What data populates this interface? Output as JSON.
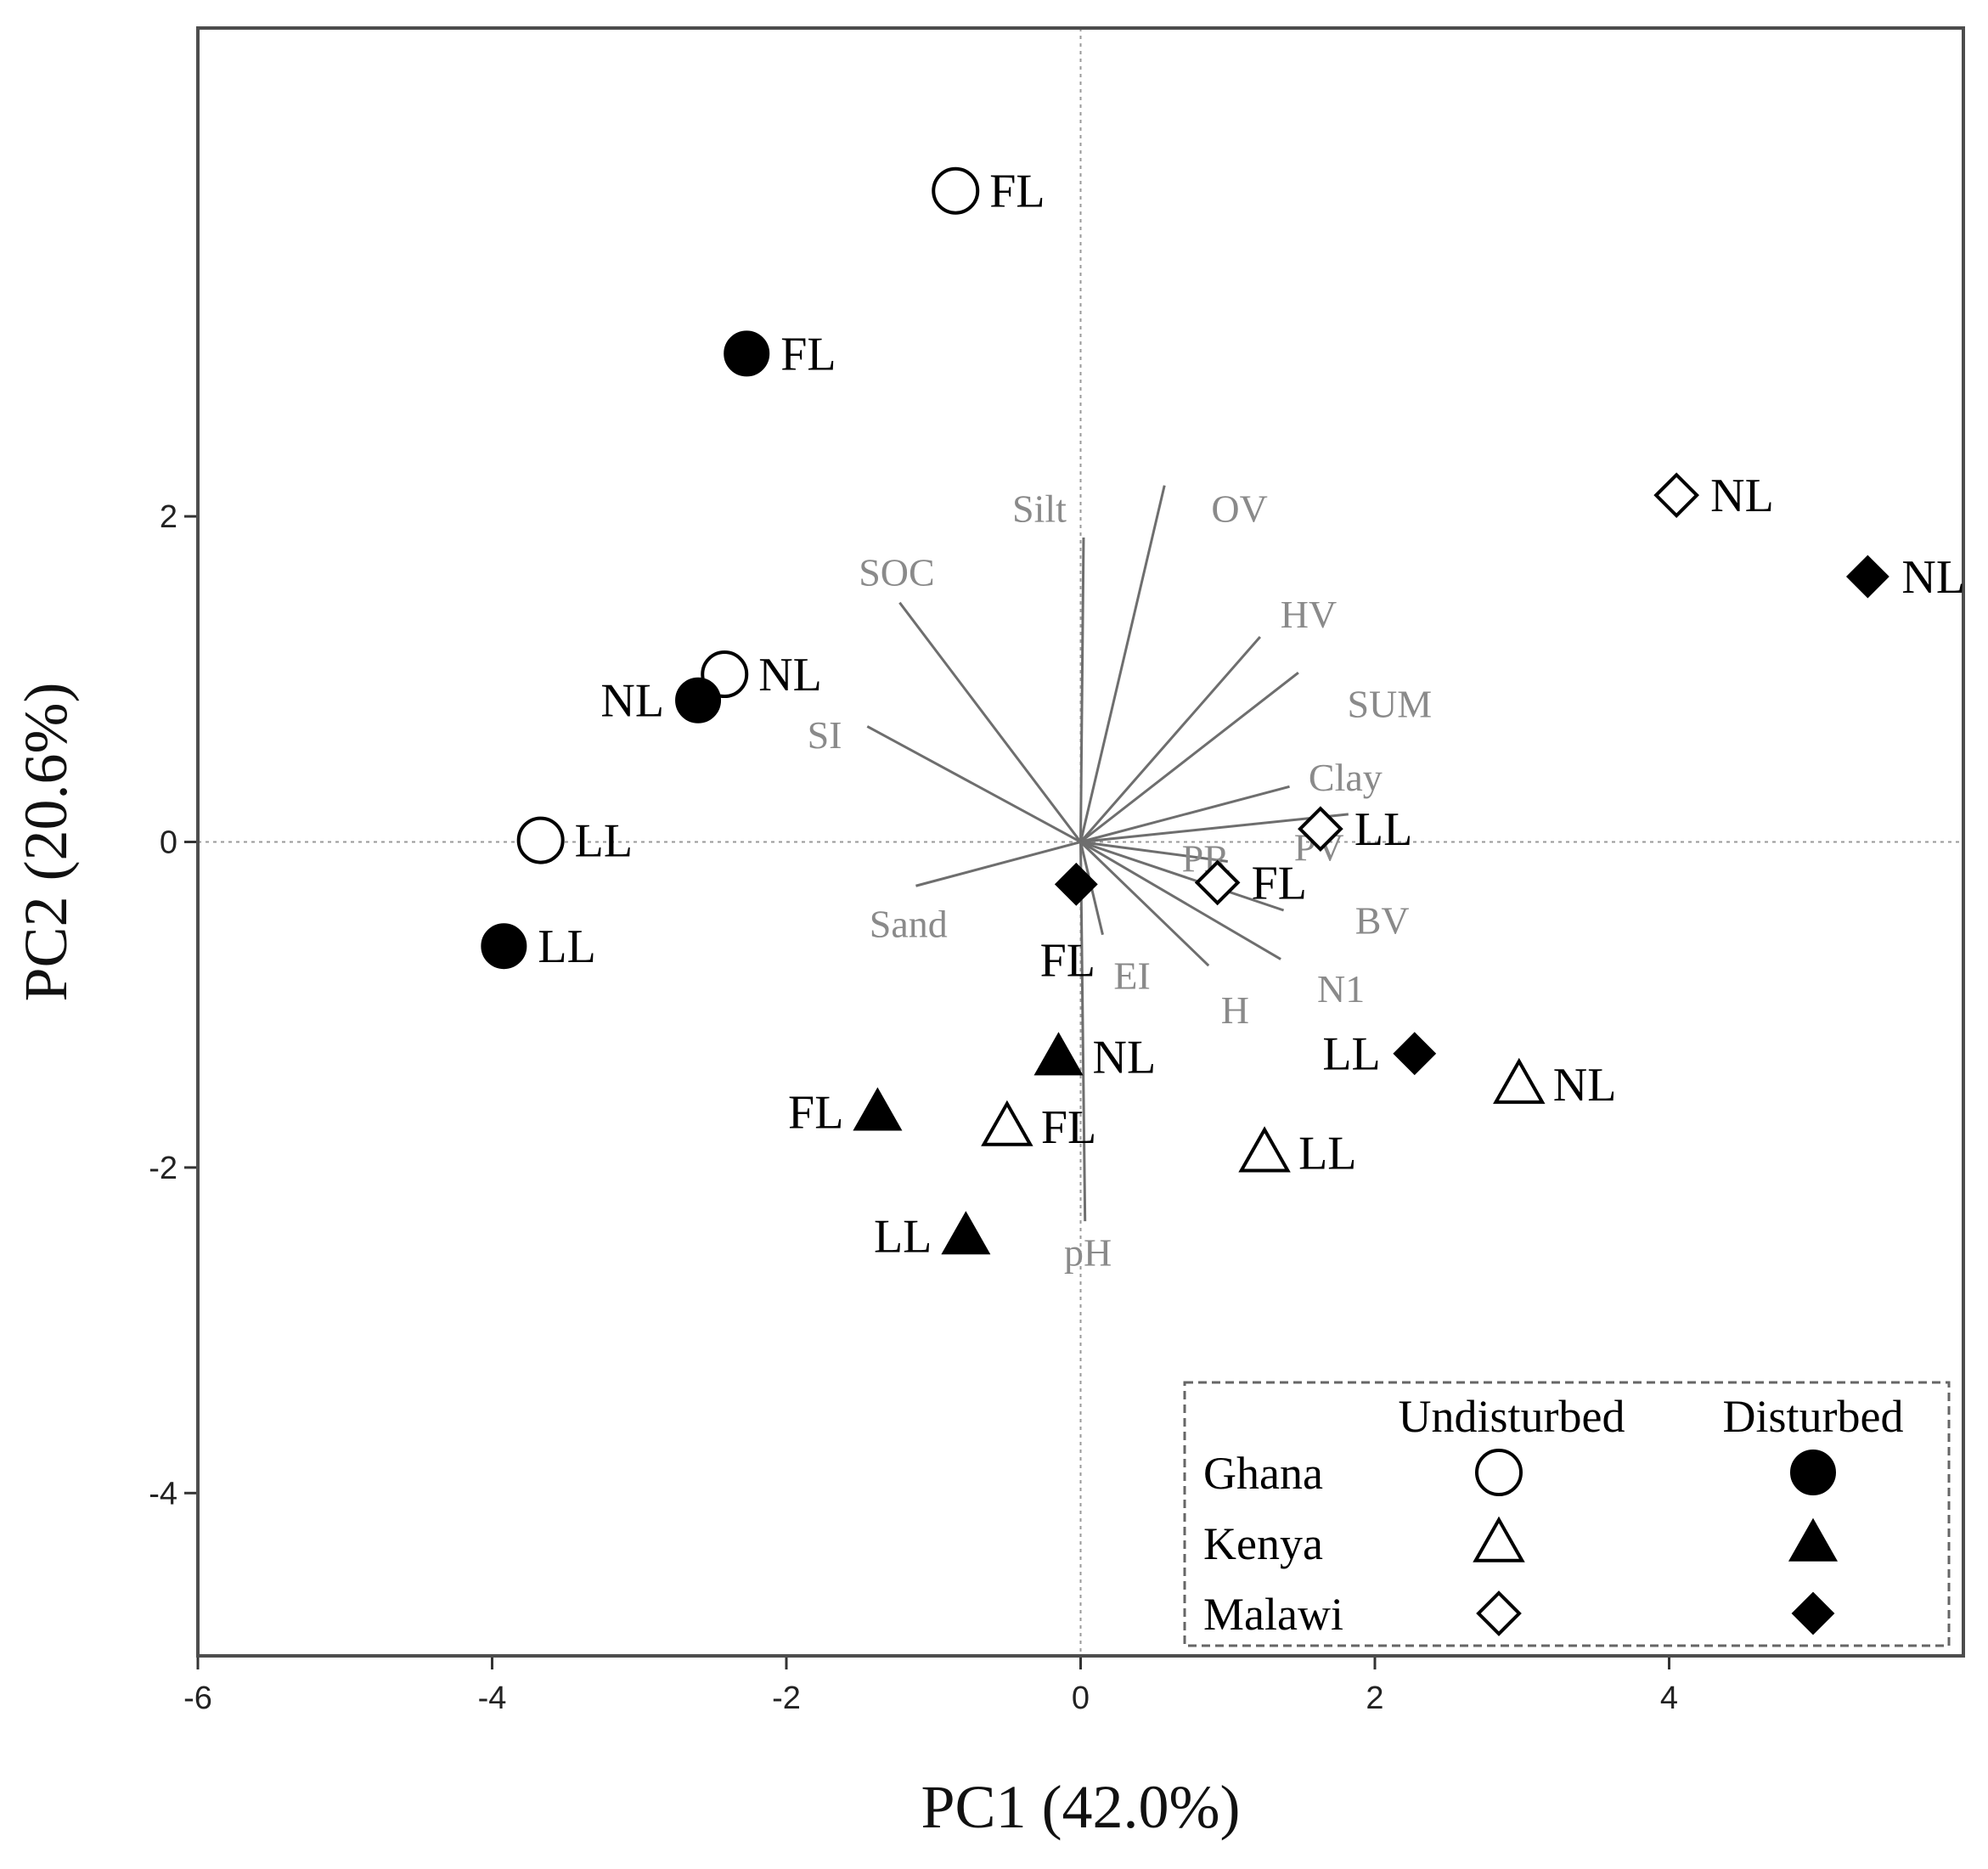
{
  "chart_data": {
    "type": "scatter",
    "subtype": "pca-biplot",
    "xlabel": "PC1 (42.0%)",
    "ylabel": "PC2 (20.6%)",
    "xlim": [
      -6,
      6
    ],
    "ylim": [
      -5,
      5
    ],
    "xticks": [
      -6,
      -4,
      -2,
      0,
      2,
      4
    ],
    "yticks": [
      -4,
      -2,
      0,
      2
    ],
    "reference_lines": {
      "x": 0,
      "y": 0,
      "style": "dotted"
    },
    "countries": [
      {
        "name": "Ghana",
        "shape": "circle"
      },
      {
        "name": "Kenya",
        "shape": "triangle"
      },
      {
        "name": "Malawi",
        "shape": "diamond"
      }
    ],
    "conditions": [
      {
        "name": "Undisturbed",
        "fill": "open"
      },
      {
        "name": "Disturbed",
        "fill": "filled"
      }
    ],
    "points": [
      {
        "label": "FL",
        "country": "Ghana",
        "condition": "Undisturbed",
        "x": -0.85,
        "y": 4.0,
        "label_side": "right"
      },
      {
        "label": "FL",
        "country": "Ghana",
        "condition": "Disturbed",
        "x": -2.27,
        "y": 3.0,
        "label_side": "right"
      },
      {
        "label": "NL",
        "country": "Ghana",
        "condition": "Undisturbed",
        "x": -2.42,
        "y": 1.03,
        "label_side": "right"
      },
      {
        "label": "NL",
        "country": "Ghana",
        "condition": "Disturbed",
        "x": -2.6,
        "y": 0.87,
        "label_side": "left"
      },
      {
        "label": "LL",
        "country": "Ghana",
        "condition": "Undisturbed",
        "x": -3.67,
        "y": 0.01,
        "label_side": "right"
      },
      {
        "label": "LL",
        "country": "Ghana",
        "condition": "Disturbed",
        "x": -3.92,
        "y": -0.64,
        "label_side": "right"
      },
      {
        "label": "NL",
        "country": "Kenya",
        "condition": "Disturbed",
        "x": -0.15,
        "y": -1.32,
        "label_side": "right"
      },
      {
        "label": "FL",
        "country": "Kenya",
        "condition": "Disturbed",
        "x": -1.38,
        "y": -1.66,
        "label_side": "left"
      },
      {
        "label": "FL",
        "country": "Kenya",
        "condition": "Undisturbed",
        "x": -0.5,
        "y": -1.75,
        "label_side": "right"
      },
      {
        "label": "LL",
        "country": "Kenya",
        "condition": "Disturbed",
        "x": -0.78,
        "y": -2.42,
        "label_side": "left"
      },
      {
        "label": "LL",
        "country": "Kenya",
        "condition": "Undisturbed",
        "x": 1.25,
        "y": -1.91,
        "label_side": "right"
      },
      {
        "label": "NL",
        "country": "Kenya",
        "condition": "Undisturbed",
        "x": 2.98,
        "y": -1.49,
        "label_side": "right"
      },
      {
        "label": "NL",
        "country": "Malawi",
        "condition": "Undisturbed",
        "x": 4.05,
        "y": 2.13,
        "label_side": "right"
      },
      {
        "label": "NL",
        "country": "Malawi",
        "condition": "Disturbed",
        "x": 5.35,
        "y": 1.63,
        "label_side": "right"
      },
      {
        "label": "LL",
        "country": "Malawi",
        "condition": "Undisturbed",
        "x": 1.63,
        "y": 0.08,
        "label_side": "right"
      },
      {
        "label": "FL",
        "country": "Malawi",
        "condition": "Undisturbed",
        "x": 0.93,
        "y": -0.25,
        "label_side": "right"
      },
      {
        "label": "FL",
        "country": "Malawi",
        "condition": "Disturbed",
        "x": -0.03,
        "y": -0.26,
        "label_side": "below"
      },
      {
        "label": "LL",
        "country": "Malawi",
        "condition": "Disturbed",
        "x": 2.27,
        "y": -1.3,
        "label_side": "left"
      }
    ],
    "loadings": [
      {
        "name": "Silt",
        "x": 0.02,
        "y": 1.87,
        "lx": -0.28,
        "ly": 2.05
      },
      {
        "name": "OV",
        "x": 0.57,
        "y": 2.19,
        "lx": 1.08,
        "ly": 2.05
      },
      {
        "name": "SOC",
        "x": -1.23,
        "y": 1.47,
        "lx": -1.25,
        "ly": 1.66
      },
      {
        "name": "HV",
        "x": 1.22,
        "y": 1.26,
        "lx": 1.55,
        "ly": 1.4
      },
      {
        "name": "SUM",
        "x": 1.48,
        "y": 1.04,
        "lx": 2.1,
        "ly": 0.85
      },
      {
        "name": "SI",
        "x": -1.45,
        "y": 0.71,
        "lx": -1.74,
        "ly": 0.66
      },
      {
        "name": "Clay",
        "x": 1.42,
        "y": 0.34,
        "lx": 1.8,
        "ly": 0.4
      },
      {
        "name": "PV",
        "x": 1.82,
        "y": 0.17,
        "lx": 1.62,
        "ly": -0.03
      },
      {
        "name": "PR",
        "x": 1.0,
        "y": -0.12,
        "lx": 0.85,
        "ly": -0.1
      },
      {
        "name": "BV",
        "x": 1.38,
        "y": -0.42,
        "lx": 2.05,
        "ly": -0.48
      },
      {
        "name": "Sand",
        "x": -1.12,
        "y": -0.27,
        "lx": -1.17,
        "ly": -0.5
      },
      {
        "name": "N1",
        "x": 1.36,
        "y": -0.72,
        "lx": 1.77,
        "ly": -0.9
      },
      {
        "name": "H",
        "x": 0.87,
        "y": -0.76,
        "lx": 1.05,
        "ly": -1.03
      },
      {
        "name": "EI",
        "x": 0.15,
        "y": -0.57,
        "lx": 0.35,
        "ly": -0.82
      },
      {
        "name": "pH",
        "x": 0.03,
        "y": -2.33,
        "lx": 0.05,
        "ly": -2.52
      }
    ],
    "legend": {
      "position": "bottom-right",
      "columns": [
        "Undisturbed",
        "Disturbed"
      ],
      "rows": [
        "Ghana",
        "Kenya",
        "Malawi"
      ]
    }
  },
  "colors": {
    "marker": "#000000",
    "loading_line": "#6e6e6e",
    "loading_label": "#8a8a8a",
    "frame": "#4d4d4d",
    "reference_line": "#9a9a9a"
  }
}
